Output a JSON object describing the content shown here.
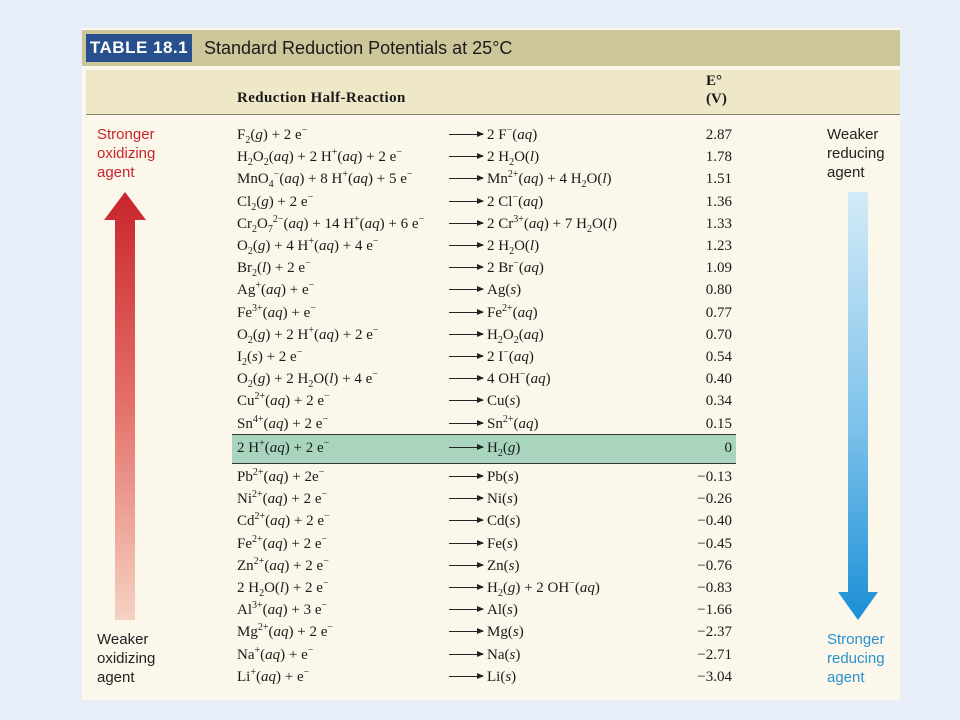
{
  "title": {
    "table_number": "TABLE 18.1",
    "text": "Standard Reduction Potentials at 25°C"
  },
  "headers": {
    "reaction": "Reduction Half-Reaction",
    "potential_line1": "E°",
    "potential_line2": "(V)"
  },
  "side_labels": {
    "stronger_oxidizing": [
      "Stronger",
      "oxidizing",
      "agent"
    ],
    "weaker_oxidizing": [
      "Weaker",
      "oxidizing",
      "agent"
    ],
    "weaker_reducing": [
      "Weaker",
      "reducing",
      "agent"
    ],
    "stronger_reducing": [
      "Stronger",
      "reducing",
      "agent"
    ]
  },
  "colors": {
    "table_number_bg": "#27508c",
    "title_bar": "#cdc69a",
    "header_band": "#eee8c8",
    "hydrogen_band": "#a9d4bd",
    "oxidizing_arrow_top": "#c8242b",
    "oxidizing_arrow_bottom": "#f6d2c2",
    "reducing_arrow_top": "#d4ebf8",
    "reducing_arrow_bottom": "#1b8fd6"
  },
  "rows": [
    {
      "lhs": "F<sub>2</sub>(<i>g</i>) + 2 e<sup>−</sup>",
      "rhs": "2 F<sup>−</sup>(<i>aq</i>)",
      "e": "2.87"
    },
    {
      "lhs": "H<sub>2</sub>O<sub>2</sub>(<i>aq</i>) + 2 H<sup>+</sup>(<i>aq</i>) + 2 e<sup>−</sup>",
      "rhs": "2 H<sub>2</sub>O(<i>l</i>)",
      "e": "1.78"
    },
    {
      "lhs": "MnO<sub>4</sub><sup>−</sup>(<i>aq</i>) + 8 H<sup>+</sup>(<i>aq</i>) + 5 e<sup>−</sup>",
      "rhs": "Mn<sup>2+</sup>(<i>aq</i>) + 4 H<sub>2</sub>O(<i>l</i>)",
      "e": "1.51"
    },
    {
      "lhs": "Cl<sub>2</sub>(<i>g</i>) + 2 e<sup>−</sup>",
      "rhs": "2 Cl<sup>−</sup>(<i>aq</i>)",
      "e": "1.36"
    },
    {
      "lhs": "Cr<sub>2</sub>O<sub>7</sub><sup>2−</sup>(<i>aq</i>) + 14 H<sup>+</sup>(<i>aq</i>) + 6 e<sup>−</sup>",
      "rhs": "2 Cr<sup>3+</sup>(<i>aq</i>) + 7 H<sub>2</sub>O(<i>l</i>)",
      "e": "1.33"
    },
    {
      "lhs": "O<sub>2</sub>(<i>g</i>) + 4 H<sup>+</sup>(<i>aq</i>) + 4 e<sup>−</sup>",
      "rhs": "2 H<sub>2</sub>O(<i>l</i>)",
      "e": "1.23"
    },
    {
      "lhs": "Br<sub>2</sub>(<i>l</i>) + 2 e<sup>−</sup>",
      "rhs": "2 Br<sup>−</sup>(<i>aq</i>)",
      "e": "1.09"
    },
    {
      "lhs": "Ag<sup>+</sup>(<i>aq</i>) + e<sup>−</sup>",
      "rhs": "Ag(<i>s</i>)",
      "e": "0.80"
    },
    {
      "lhs": "Fe<sup>3+</sup>(<i>aq</i>) + e<sup>−</sup>",
      "rhs": "Fe<sup>2+</sup>(<i>aq</i>)",
      "e": "0.77"
    },
    {
      "lhs": "O<sub>2</sub>(<i>g</i>) + 2 H<sup>+</sup>(<i>aq</i>) + 2 e<sup>−</sup>",
      "rhs": "H<sub>2</sub>O<sub>2</sub>(<i>aq</i>)",
      "e": "0.70"
    },
    {
      "lhs": "I<sub>2</sub>(<i>s</i>) + 2 e<sup>−</sup>",
      "rhs": "2 I<sup>−</sup>(<i>aq</i>)",
      "e": "0.54"
    },
    {
      "lhs": "O<sub>2</sub>(<i>g</i>) + 2 H<sub>2</sub>O(<i>l</i>) + 4 e<sup>−</sup>",
      "rhs": "4 OH<sup>−</sup>(<i>aq</i>)",
      "e": "0.40"
    },
    {
      "lhs": "Cu<sup>2+</sup>(<i>aq</i>) + 2 e<sup>−</sup>",
      "rhs": "Cu(<i>s</i>)",
      "e": "0.34"
    },
    {
      "lhs": "Sn<sup>4+</sup>(<i>aq</i>) + 2 e<sup>−</sup>",
      "rhs": "Sn<sup>2+</sup>(<i>aq</i>)",
      "e": "0.15"
    },
    {
      "lhs": "2 H<sup>+</sup>(<i>aq</i>) + 2 e<sup>−</sup>",
      "rhs": "H<sub>2</sub>(<i>g</i>)",
      "e": "0",
      "highlight": true
    },
    {
      "lhs": "Pb<sup>2+</sup>(<i>aq</i>) + 2e<sup>−</sup>",
      "rhs": "Pb(<i>s</i>)",
      "e": "−0.13"
    },
    {
      "lhs": "Ni<sup>2+</sup>(<i>aq</i>) + 2 e<sup>−</sup>",
      "rhs": "Ni(<i>s</i>)",
      "e": "−0.26"
    },
    {
      "lhs": "Cd<sup>2+</sup>(<i>aq</i>) + 2 e<sup>−</sup>",
      "rhs": "Cd(<i>s</i>)",
      "e": "−0.40"
    },
    {
      "lhs": "Fe<sup>2+</sup>(<i>aq</i>) + 2 e<sup>−</sup>",
      "rhs": "Fe(<i>s</i>)",
      "e": "−0.45"
    },
    {
      "lhs": "Zn<sup>2+</sup>(<i>aq</i>) + 2 e<sup>−</sup>",
      "rhs": "Zn(<i>s</i>)",
      "e": "−0.76"
    },
    {
      "lhs": "2 H<sub>2</sub>O(<i>l</i>) + 2 e<sup>−</sup>",
      "rhs": "H<sub>2</sub>(<i>g</i>) + 2 OH<sup>−</sup>(<i>aq</i>)",
      "e": "−0.83"
    },
    {
      "lhs": "Al<sup>3+</sup>(<i>aq</i>) + 3 e<sup>−</sup>",
      "rhs": "Al(<i>s</i>)",
      "e": "−1.66"
    },
    {
      "lhs": "Mg<sup>2+</sup>(<i>aq</i>) + 2 e<sup>−</sup>",
      "rhs": "Mg(<i>s</i>)",
      "e": "−2.37"
    },
    {
      "lhs": "Na<sup>+</sup>(<i>aq</i>) + e<sup>−</sup>",
      "rhs": "Na(<i>s</i>)",
      "e": "−2.71"
    },
    {
      "lhs": "Li<sup>+</sup>(<i>aq</i>) + e<sup>−</sup>",
      "rhs": "Li(<i>s</i>)",
      "e": "−3.04"
    }
  ]
}
